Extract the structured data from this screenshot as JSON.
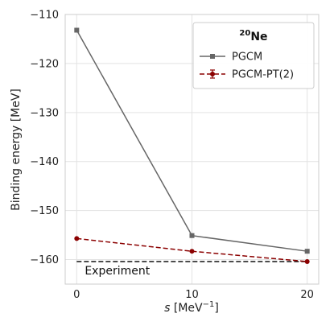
{
  "chart_data": {
    "type": "line",
    "xlabel_var": "s",
    "xlabel_unit": " [MeV",
    "xlabel_unit_exp": "−1",
    "xlabel_unit_close": "]",
    "ylabel": "Binding energy [MeV]",
    "x": [
      0,
      10,
      20
    ],
    "xlim": [
      -1,
      21
    ],
    "ylim": [
      -165,
      -110
    ],
    "x_ticks": [
      0,
      10,
      20
    ],
    "x_tick_labels": [
      "0",
      "10",
      "20"
    ],
    "y_ticks": [
      -160,
      -150,
      -140,
      -130,
      -120,
      -110
    ],
    "y_tick_labels": [
      "−160",
      "−150",
      "−140",
      "−130",
      "−120",
      "−110"
    ],
    "grid": true,
    "legend": {
      "placement": "top-right",
      "title_sup": "20",
      "title_main": "Ne"
    },
    "series": [
      {
        "name": "PGCM",
        "values": [
          -113.2,
          -155.1,
          -158.3
        ],
        "color": "#666666",
        "linestyle": "solid",
        "marker": "square"
      },
      {
        "name": "PGCM-PT(2)",
        "values": [
          -155.7,
          -158.3,
          -160.4
        ],
        "color": "#8b0000",
        "linestyle": "dashed",
        "marker": "circle-errorbar"
      }
    ],
    "reference_line": {
      "label": "Experiment",
      "value": -160.4,
      "color": "#111111",
      "linestyle": "dashed"
    }
  }
}
